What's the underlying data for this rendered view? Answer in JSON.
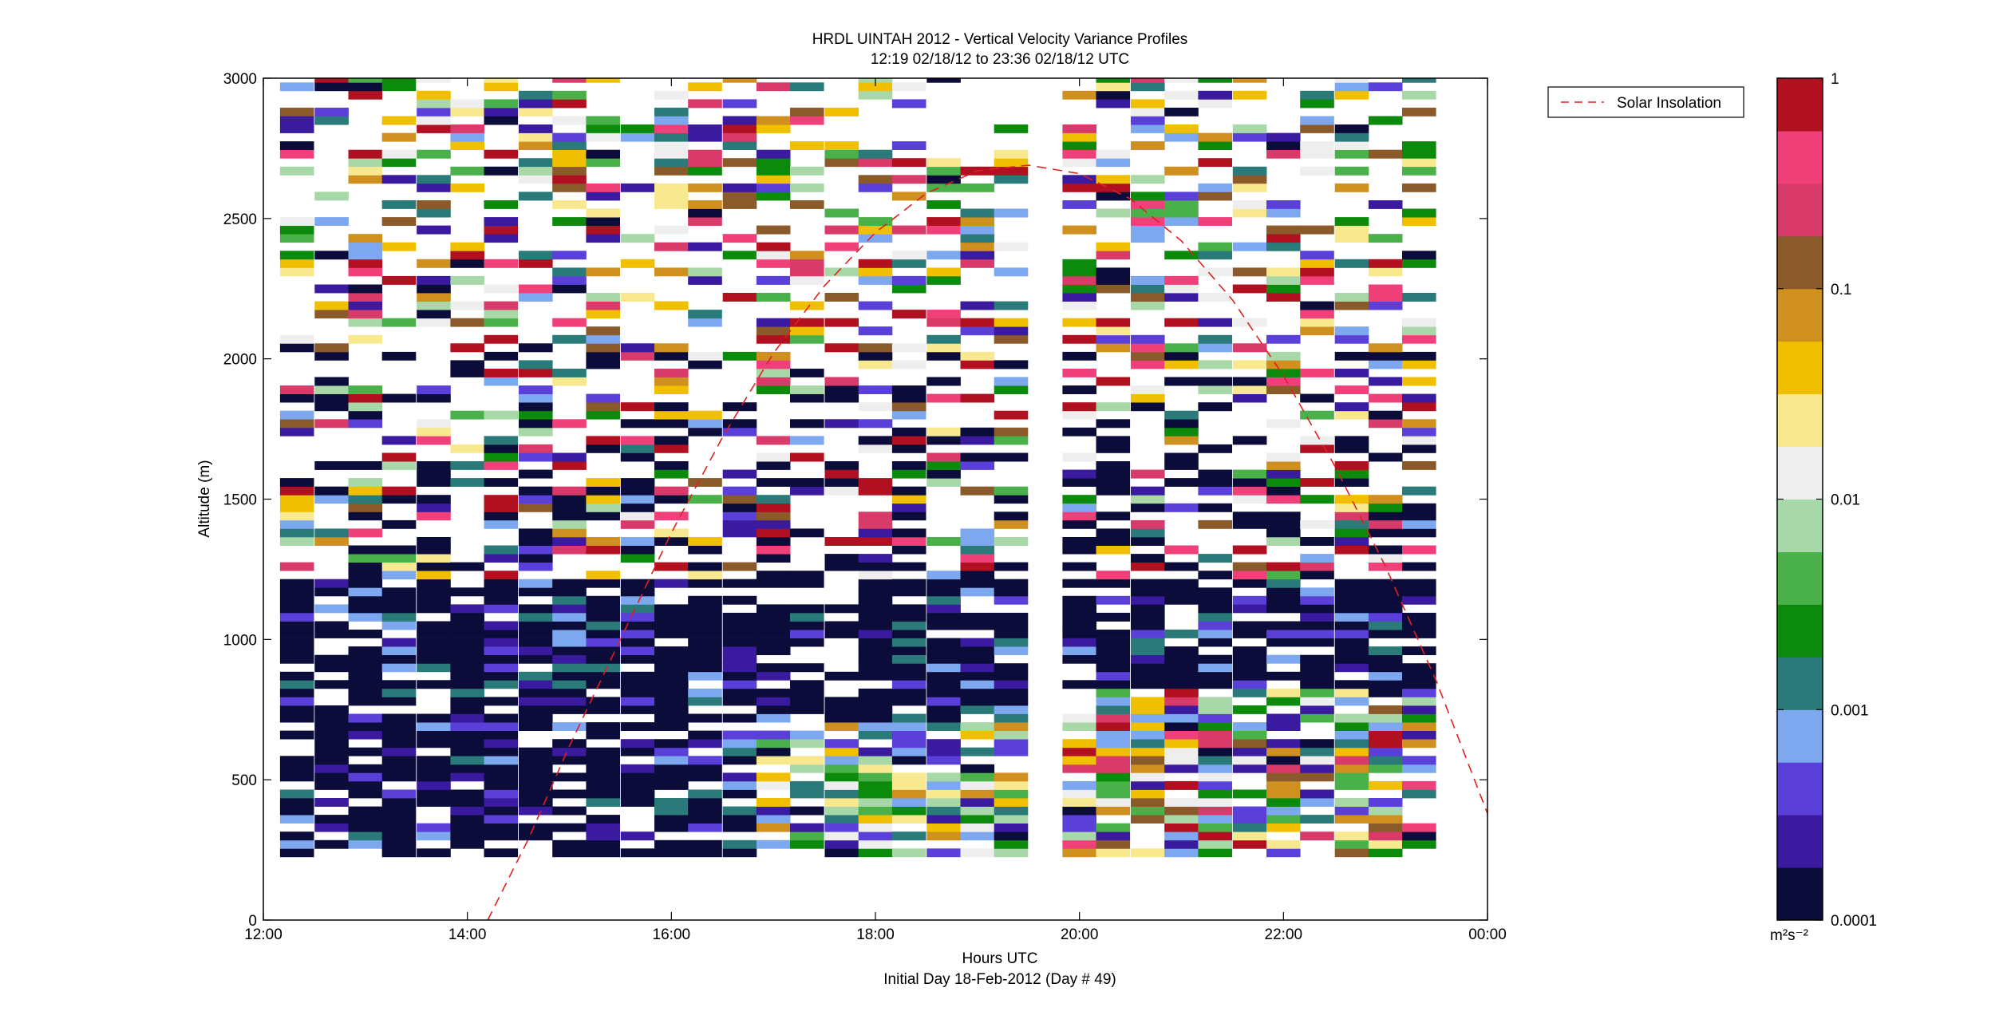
{
  "chart_data": {
    "type": "heatmap",
    "title": "HRDL UINTAH 2012 - Vertical Velocity Variance Profiles",
    "subtitle": "12:19 02/18/12 to 23:36 02/18/12  UTC",
    "xlabel": "Hours UTC",
    "xlabel2": "Initial Day 18-Feb-2012 (Day # 49)",
    "ylabel": "Altitude (m)",
    "xlim_hours": [
      12,
      24
    ],
    "ylim": [
      0,
      3000
    ],
    "x_ticks": [
      12,
      14,
      16,
      18,
      20,
      22,
      24
    ],
    "x_tick_labels": [
      "12:00",
      "14:00",
      "16:00",
      "18:00",
      "20:00",
      "22:00",
      "00:00"
    ],
    "y_ticks": [
      0,
      500,
      1000,
      1500,
      2000,
      2500,
      3000
    ],
    "y_tick_labels": [
      "0",
      "500",
      "1000",
      "1500",
      "2000",
      "2500",
      "3000"
    ],
    "grid": false,
    "colorbar": {
      "scale": "log",
      "range": [
        0.0001,
        1
      ],
      "ticks": [
        0.0001,
        0.001,
        0.01,
        0.1,
        1
      ],
      "tick_labels": [
        "0.0001",
        "0.001",
        "0.01",
        "0.1",
        "1"
      ],
      "unit_label": "m²s⁻²",
      "colors": [
        "#0c0c3a",
        "#3a1a9e",
        "#5a40d8",
        "#7da8f0",
        "#2a7a7a",
        "#0c8a0c",
        "#4ab04a",
        "#a8d8a8",
        "#eeeeee",
        "#f8e890",
        "#f0c000",
        "#d09020",
        "#8a5a2a",
        "#d83a6a",
        "#f0407a",
        "#b01020"
      ]
    },
    "legend": {
      "placement": "top-right",
      "entries": [
        "Solar Insolation"
      ]
    },
    "overlay_line": {
      "name": "Solar Insolation",
      "style": "dashed",
      "color": "#e02020",
      "x": [
        14.2,
        14.6,
        15.0,
        15.5,
        16.0,
        16.5,
        17.0,
        17.5,
        18.0,
        18.5,
        19.0,
        19.5,
        20.0,
        20.5,
        21.0,
        21.5,
        22.0,
        22.5,
        23.0,
        23.5,
        24.0
      ],
      "y": [
        0,
        290,
        620,
        1000,
        1380,
        1720,
        2020,
        2260,
        2450,
        2590,
        2670,
        2690,
        2660,
        2570,
        2420,
        2210,
        1940,
        1620,
        1260,
        850,
        380
      ]
    },
    "profile_hours": [
      12.33,
      12.67,
      13.0,
      13.33,
      13.67,
      14.0,
      14.33,
      14.67,
      15.0,
      15.33,
      15.67,
      16.0,
      16.33,
      16.67,
      17.0,
      17.33,
      17.67,
      18.0,
      18.33,
      18.67,
      19.0,
      19.33,
      20.0,
      20.33,
      20.67,
      21.0,
      21.33,
      21.67,
      22.0,
      22.33,
      22.67,
      23.0,
      23.33
    ],
    "altitude_range_m": [
      225,
      3000
    ],
    "gate_m": 30
  }
}
